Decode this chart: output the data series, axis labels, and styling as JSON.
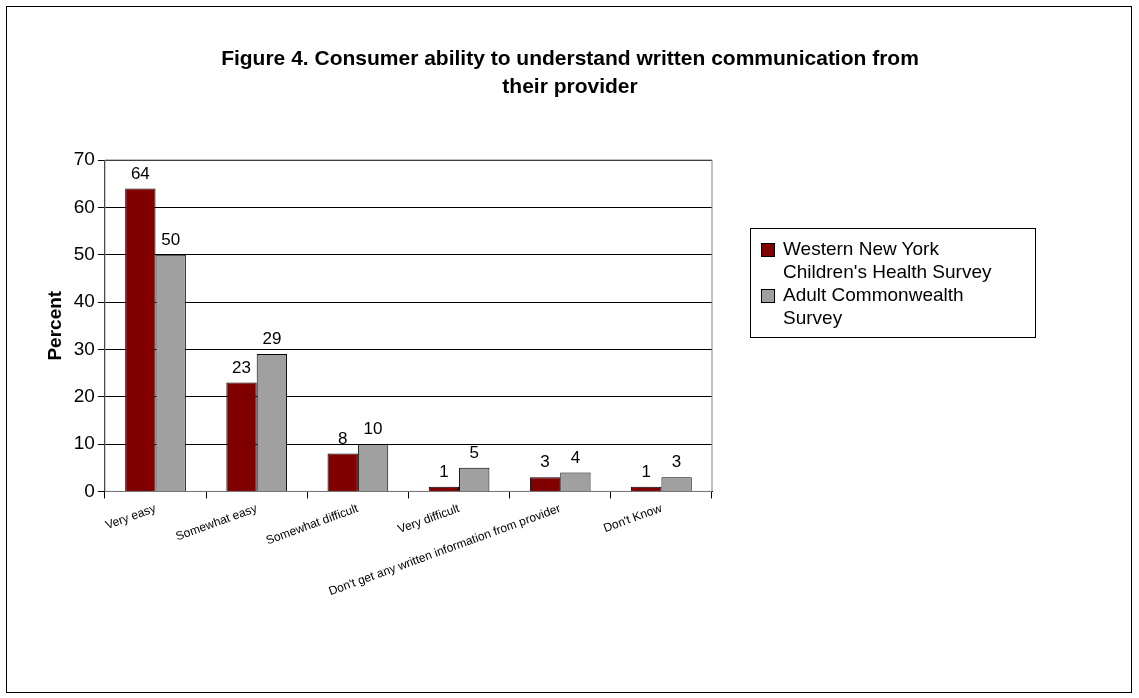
{
  "chart_data": {
    "type": "bar",
    "title": "Figure 4. Consumer ability to understand written communication from their provider",
    "ylabel": "Percent",
    "categories": [
      "Very easy",
      "Somewhat easy",
      "Somewhat difficult",
      "Very difficult",
      "Don't get any written information from provider",
      "Don't Know"
    ],
    "series": [
      {
        "name": "Western New York Children's Health Survey",
        "color": "#800000",
        "values": [
          64,
          23,
          8,
          1,
          3,
          1
        ]
      },
      {
        "name": "Adult Commonwealth Survey",
        "color": "#a0a0a0",
        "values": [
          50,
          29,
          10,
          5,
          4,
          3
        ]
      }
    ],
    "ylim": [
      0,
      70
    ],
    "yticks": [
      0,
      10,
      20,
      30,
      40,
      50,
      60,
      70
    ],
    "grid": "y",
    "legend": "right",
    "data_labels": true
  }
}
